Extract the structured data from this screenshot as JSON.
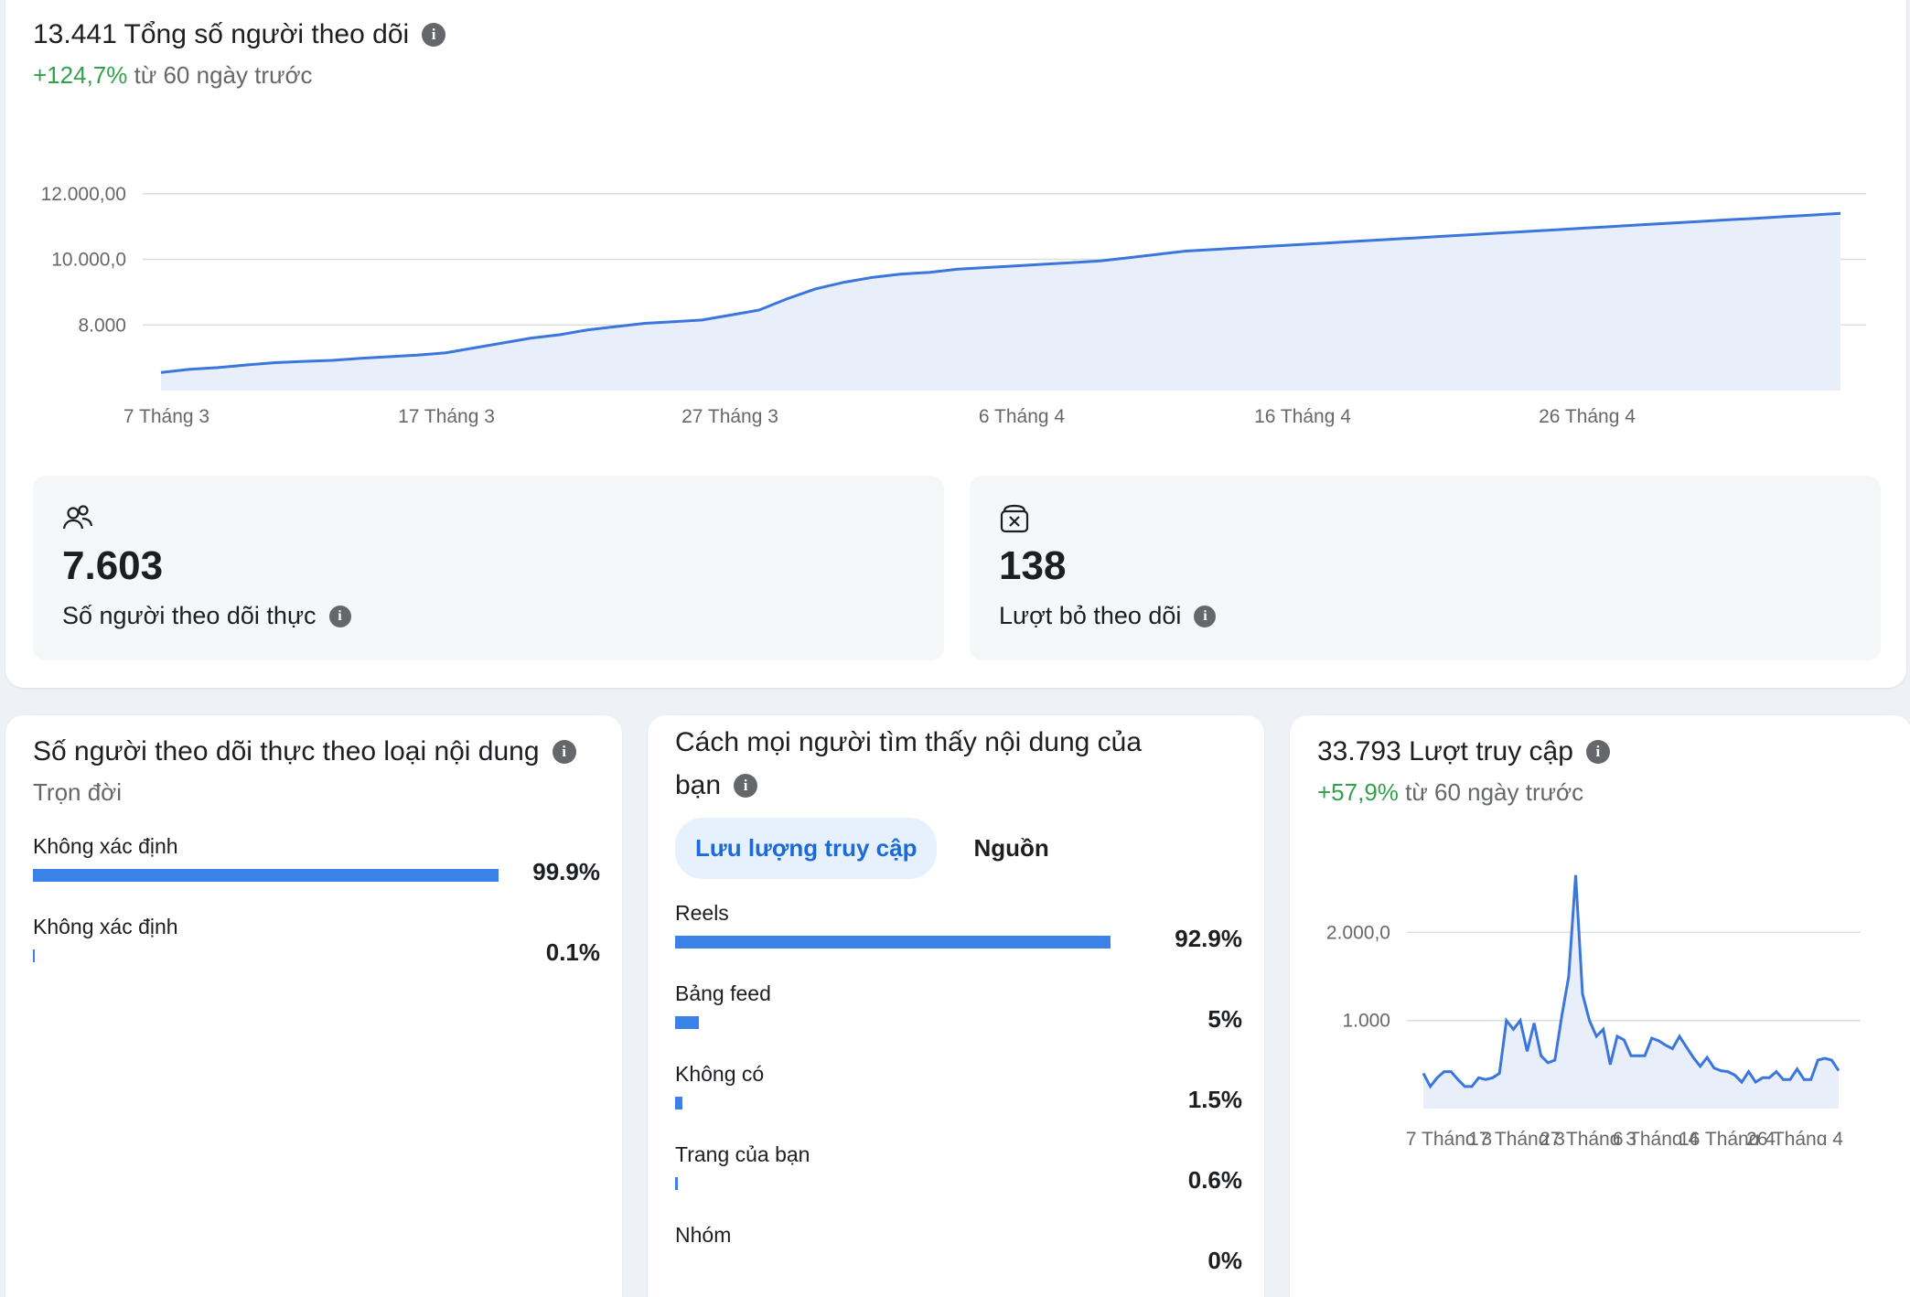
{
  "followers": {
    "title": "13.441 Tổng số người theo dõi",
    "change": "+124,7%",
    "change_suffix": "từ 60 ngày trước",
    "chart_data": {
      "type": "area",
      "y_ticks": [
        "8.000",
        "10.000,0",
        "12.000,00"
      ],
      "x_ticks": [
        "7 Tháng 3",
        "17 Tháng 3",
        "27 Tháng 3",
        "6 Tháng 4",
        "16 Tháng 4",
        "26 Tháng 4"
      ],
      "series": [
        {
          "color": "#3b76dc",
          "values": [
            6550,
            6650,
            6700,
            6780,
            6850,
            6890,
            6920,
            6980,
            7030,
            7080,
            7150,
            7300,
            7450,
            7600,
            7700,
            7850,
            7950,
            8050,
            8100,
            8150,
            8300,
            8450,
            8800,
            9100,
            9300,
            9450,
            9550,
            9600,
            9700,
            9750,
            9800,
            9850,
            9900,
            9950,
            10050,
            10150,
            10250,
            10300,
            10350,
            10400,
            10450,
            10500,
            10550,
            10600,
            10650,
            10700,
            10750,
            10800,
            10850,
            10900,
            10950,
            11000,
            11050,
            11100,
            11150,
            11200,
            11250,
            11300,
            11350,
            11400
          ],
          "y_min": 6000,
          "y_max": 14000
        }
      ]
    }
  },
  "net_followers": {
    "value": "7.603",
    "label": "Số người theo dõi thực"
  },
  "unfollows": {
    "value": "138",
    "label": "Lượt bỏ theo dõi"
  },
  "content_type": {
    "title": "Số người theo dõi thực theo loại nội dung",
    "subtitle": "Trọn đời",
    "rows": [
      {
        "name": "Không xác định",
        "pct": "99.9%",
        "value": 99.9
      },
      {
        "name": "Không xác định",
        "pct": "0.1%",
        "value": 0.1
      }
    ]
  },
  "discovery": {
    "title_line1": "Cách mọi người tìm thấy nội dung của",
    "title_line2": "bạn",
    "tab_active": "Lưu lượng truy cập",
    "tab_other": "Nguồn",
    "rows": [
      {
        "name": "Reels",
        "pct": "92.9%",
        "value": 92.9
      },
      {
        "name": "Bảng feed",
        "pct": "5%",
        "value": 5
      },
      {
        "name": "Không có",
        "pct": "1.5%",
        "value": 1.5
      },
      {
        "name": "Trang của bạn",
        "pct": "0.6%",
        "value": 0.6
      },
      {
        "name": "Nhóm",
        "pct": "0%",
        "value": 0
      }
    ]
  },
  "visits": {
    "title": "33.793 Lượt truy cập",
    "change": "+57,9%",
    "change_suffix": "từ 60 ngày trước",
    "chart_data": {
      "type": "area",
      "y_ticks": [
        "1.000",
        "2.000,0"
      ],
      "x_ticks": [
        "7 Tháng 3",
        "17 Tháng 3",
        "27 Tháng 3",
        "6 Tháng 4",
        "16 Tháng 4",
        "26 Tháng 4"
      ],
      "series": [
        {
          "color": "#3b76dc",
          "values": [
            400,
            250,
            350,
            420,
            420,
            330,
            250,
            250,
            350,
            330,
            350,
            400,
            1000,
            900,
            1000,
            650,
            970,
            600,
            520,
            550,
            1050,
            1500,
            2650,
            1300,
            1000,
            820,
            900,
            500,
            820,
            780,
            600,
            600,
            600,
            800,
            770,
            720,
            680,
            820,
            700,
            580,
            480,
            580,
            460,
            430,
            420,
            380,
            300,
            420,
            300,
            350,
            350,
            420,
            330,
            330,
            450,
            330,
            330,
            550,
            570,
            550,
            430
          ],
          "y_min": 0,
          "y_max": 2700
        }
      ]
    }
  }
}
